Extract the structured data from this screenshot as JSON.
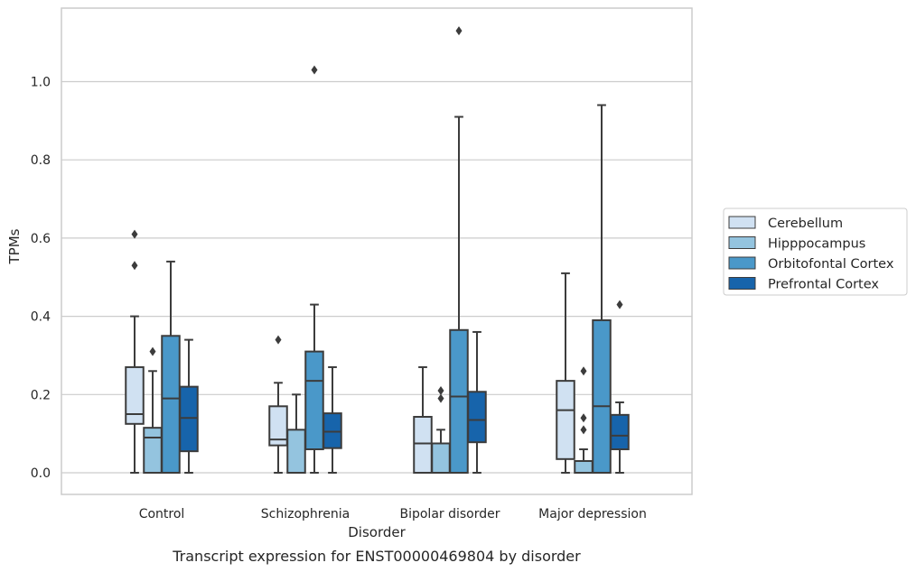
{
  "chart_data": {
    "type": "boxplot",
    "title": "",
    "caption": "Transcript expression for ENST00000469804 by disorder",
    "xlabel": "Disorder",
    "ylabel": "TPMs",
    "ylim": [
      -0.055,
      1.19
    ],
    "yticks": [
      "0.0",
      "0.2",
      "0.4",
      "0.6",
      "0.8",
      "1.0"
    ],
    "grid": "horizontal",
    "legend_position": "right",
    "categories": [
      "Control",
      "Schizophrenia",
      "Bipolar disorder",
      "Major depression"
    ],
    "series": [
      {
        "name": "Cerebellum",
        "color": "#d0e1f2",
        "boxes": [
          {
            "whislo": 0.0,
            "q1": 0.125,
            "med": 0.15,
            "q3": 0.27,
            "whishi": 0.4,
            "fliers": [
              0.53,
              0.61
            ]
          },
          {
            "whislo": 0.0,
            "q1": 0.07,
            "med": 0.085,
            "q3": 0.17,
            "whishi": 0.23,
            "fliers": [
              0.34
            ]
          },
          {
            "whislo": 0.0,
            "q1": 0.0,
            "med": 0.075,
            "q3": 0.143,
            "whishi": 0.27,
            "fliers": []
          },
          {
            "whislo": 0.0,
            "q1": 0.035,
            "med": 0.16,
            "q3": 0.235,
            "whishi": 0.51,
            "fliers": []
          }
        ]
      },
      {
        "name": "Hipppocampus",
        "color": "#94c4df",
        "boxes": [
          {
            "whislo": 0.0,
            "q1": 0.0,
            "med": 0.09,
            "q3": 0.115,
            "whishi": 0.26,
            "fliers": [
              0.31
            ]
          },
          {
            "whislo": 0.0,
            "q1": 0.0,
            "med": 0.0,
            "q3": 0.11,
            "whishi": 0.2,
            "fliers": []
          },
          {
            "whislo": 0.0,
            "q1": 0.0,
            "med": 0.0,
            "q3": 0.075,
            "whishi": 0.11,
            "fliers": [
              0.19,
              0.21
            ]
          },
          {
            "whislo": 0.0,
            "q1": 0.0,
            "med": 0.0,
            "q3": 0.03,
            "whishi": 0.06,
            "fliers": [
              0.11,
              0.14,
              0.26
            ]
          }
        ]
      },
      {
        "name": "Orbitofontal Cortex",
        "color": "#4a98c9",
        "boxes": [
          {
            "whislo": 0.0,
            "q1": 0.0,
            "med": 0.19,
            "q3": 0.35,
            "whishi": 0.54,
            "fliers": []
          },
          {
            "whislo": 0.0,
            "q1": 0.06,
            "med": 0.235,
            "q3": 0.31,
            "whishi": 0.43,
            "fliers": [
              1.03
            ]
          },
          {
            "whislo": 0.0,
            "q1": 0.0,
            "med": 0.195,
            "q3": 0.365,
            "whishi": 0.91,
            "fliers": [
              1.13
            ]
          },
          {
            "whislo": 0.0,
            "q1": 0.0,
            "med": 0.17,
            "q3": 0.39,
            "whishi": 0.94,
            "fliers": []
          }
        ]
      },
      {
        "name": "Prefrontal Cortex",
        "color": "#1764ab",
        "boxes": [
          {
            "whislo": 0.0,
            "q1": 0.055,
            "med": 0.14,
            "q3": 0.22,
            "whishi": 0.34,
            "fliers": []
          },
          {
            "whislo": 0.0,
            "q1": 0.063,
            "med": 0.105,
            "q3": 0.152,
            "whishi": 0.27,
            "fliers": []
          },
          {
            "whislo": 0.0,
            "q1": 0.078,
            "med": 0.135,
            "q3": 0.207,
            "whishi": 0.36,
            "fliers": []
          },
          {
            "whislo": 0.0,
            "q1": 0.06,
            "med": 0.095,
            "q3": 0.148,
            "whishi": 0.18,
            "fliers": [
              0.43
            ]
          }
        ]
      }
    ]
  }
}
